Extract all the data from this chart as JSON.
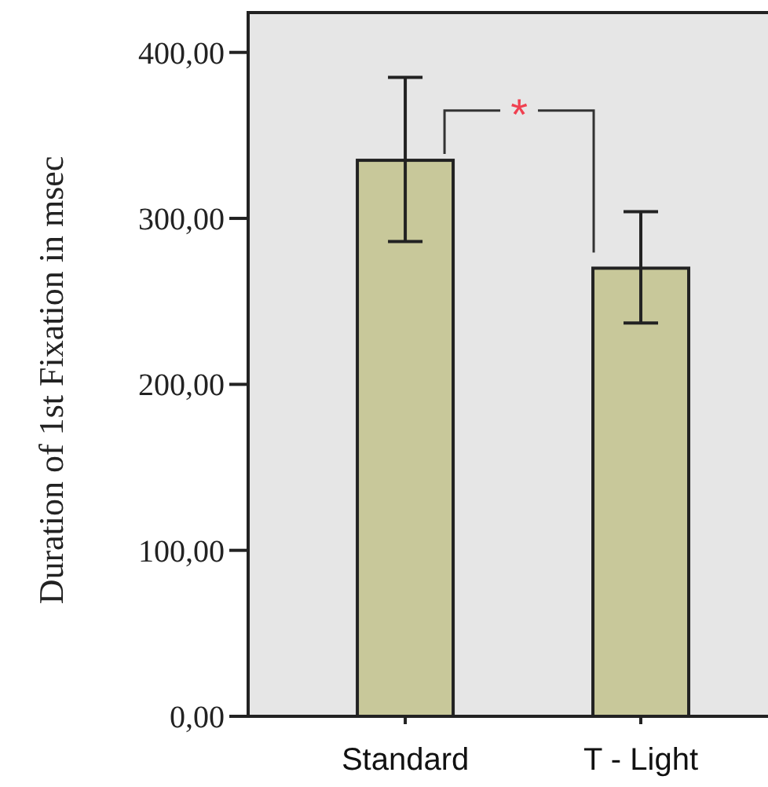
{
  "chart_data": {
    "type": "bar",
    "ylabel": "Duration of 1st Fixation in msec",
    "categories": [
      "Standard",
      "T - Light"
    ],
    "values": [
      335,
      270
    ],
    "errors": [
      [
        286,
        385
      ],
      [
        237,
        304
      ]
    ],
    "color": "#c8c89a",
    "ylim": [
      0,
      424
    ],
    "yticks": [
      {
        "value": 0,
        "label": "0,00"
      },
      {
        "value": 100,
        "label": "100,00"
      },
      {
        "value": 200,
        "label": "200,00"
      },
      {
        "value": 300,
        "label": "300,00"
      },
      {
        "value": 400,
        "label": "400,00"
      }
    ],
    "grid": false,
    "annotations": [
      {
        "text": "*",
        "x": "Standard",
        "y": 365
      }
    ]
  }
}
